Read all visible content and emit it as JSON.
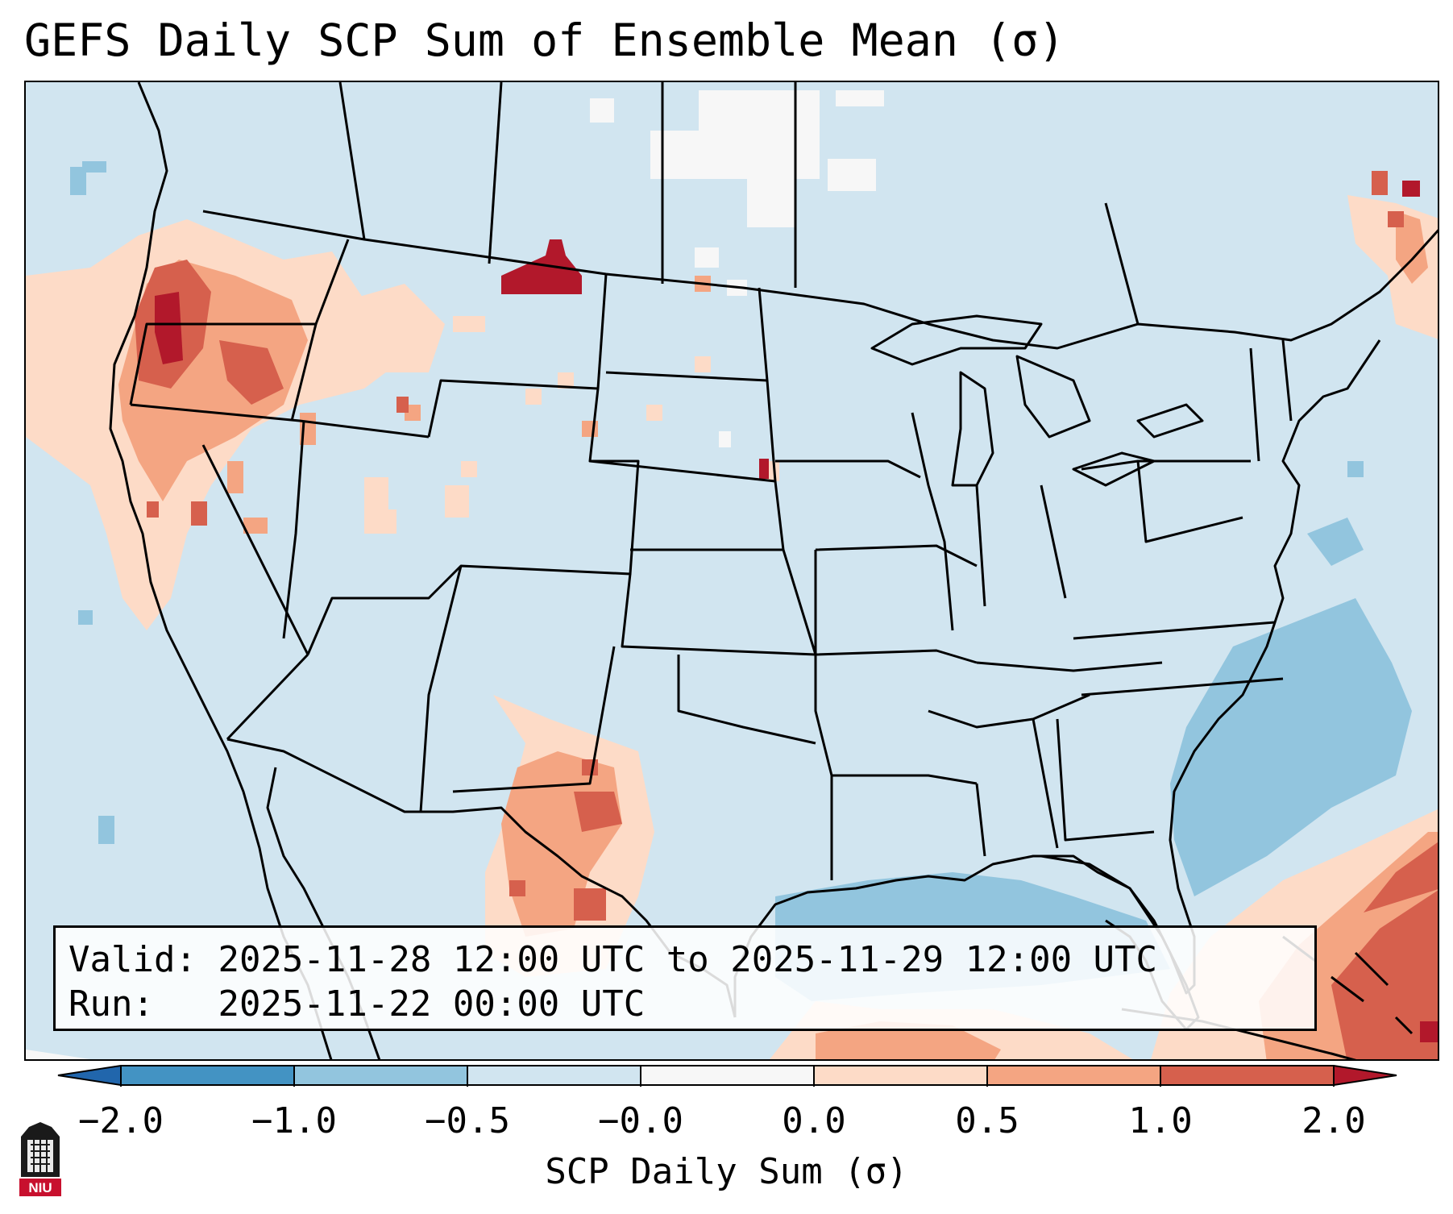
{
  "title": "GEFS Daily SCP Sum of Ensemble Mean (σ)",
  "info": {
    "valid_label": "Valid:",
    "valid_value": "2025-11-28 12:00 UTC to 2025-11-29 12:00 UTC",
    "run_label": "Run:",
    "run_value": "2025-11-22 00:00 UTC"
  },
  "colorbar": {
    "label": "SCP Daily Sum (σ)",
    "ticks": [
      "−2.0",
      "−1.0",
      "−0.5",
      "−0.0",
      "0.0",
      "0.5",
      "1.0",
      "2.0"
    ],
    "colors": [
      "#4393c3",
      "#92c5de",
      "#d1e5f0",
      "#f7f7f7",
      "#fddbc7",
      "#f4a582",
      "#d6604d"
    ],
    "extend_under": "#2166ac",
    "extend_over": "#b2182b"
  },
  "map": {
    "region": "CONUS",
    "background": "#d1e5f0"
  },
  "logo": {
    "text": "NIU",
    "icon": "niu-logo-icon"
  }
}
